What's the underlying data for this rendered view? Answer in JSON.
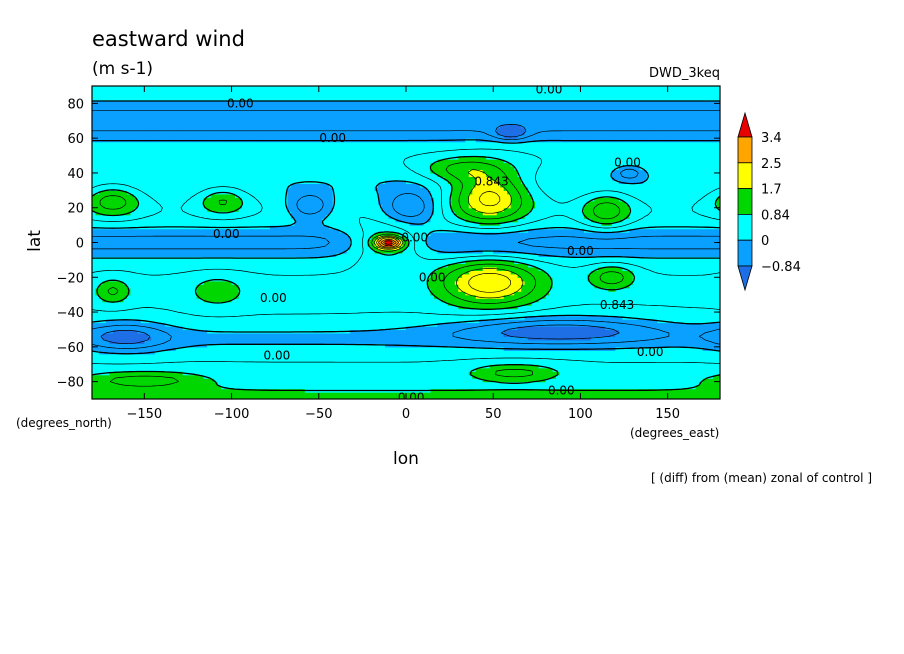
{
  "chart_data": {
    "type": "contour",
    "title": "eastward wind",
    "units": "(m s-1)",
    "dataset": "DWD_3keq",
    "note": "[ (diff) from (mean) zonal of control ]",
    "xlabel": "lon",
    "ylabel": "lat",
    "x_unit": "(degrees_east)",
    "y_unit": "(degrees_north)",
    "xlim": [
      -180,
      180
    ],
    "ylim": [
      -90,
      90
    ],
    "x_ticks": [
      -150,
      -100,
      -50,
      0,
      50,
      100,
      150
    ],
    "y_ticks": [
      -80,
      -60,
      -40,
      -20,
      0,
      20,
      40,
      60,
      80
    ],
    "x_tick_labels": [
      "−150",
      "−100",
      "−50",
      "0",
      "50",
      "100",
      "150"
    ],
    "y_tick_labels": [
      "−80",
      "−60",
      "−40",
      "−20",
      "0",
      "20",
      "40",
      "60",
      "80"
    ],
    "levels": [
      -0.84,
      0,
      0.84,
      1.7,
      2.5,
      3.4
    ],
    "colorbar_labels": [
      "3.4",
      "2.5",
      "1.7",
      "0.84",
      "0",
      "−0.84"
    ],
    "colors": {
      "below": "#1e6ee6",
      "band1": "#0aa0ff",
      "band2": "#00ffff",
      "band3": "#00d700",
      "band4": "#ffff00",
      "band5": "#ffa500",
      "above": "#e60000"
    },
    "contour_labels": [
      {
        "text": "0.00",
        "lon": -95,
        "lat": 80
      },
      {
        "text": "0.00",
        "lon": -42,
        "lat": 60
      },
      {
        "text": "0.00",
        "lon": 82,
        "lat": 88
      },
      {
        "text": "0.00",
        "lon": 127,
        "lat": 46
      },
      {
        "text": "0.843",
        "lon": 49,
        "lat": 35
      },
      {
        "text": "0.00",
        "lon": -103,
        "lat": 5
      },
      {
        "text": "0.00",
        "lon": 5,
        "lat": 3
      },
      {
        "text": "0.00",
        "lon": 15,
        "lat": -20
      },
      {
        "text": "0.00",
        "lon": 100,
        "lat": -5
      },
      {
        "text": "0.00",
        "lon": -76,
        "lat": -32
      },
      {
        "text": "0.843",
        "lon": 121,
        "lat": -36
      },
      {
        "text": "0.00",
        "lon": -74,
        "lat": -65
      },
      {
        "text": "0.00",
        "lon": 140,
        "lat": -63
      },
      {
        "text": "0.00",
        "lon": 89,
        "lat": -85
      },
      {
        "text": "0.00",
        "lon": 3,
        "lat": -89
      }
    ],
    "features": [
      {
        "kind": "blob",
        "lon": -168,
        "lat": 24,
        "w": 16,
        "h": 9,
        "value": 1.2
      },
      {
        "kind": "blob",
        "lon": -105,
        "lat": 24,
        "w": 14,
        "h": 8,
        "value": 1.0
      },
      {
        "kind": "blob",
        "lon": -55,
        "lat": 21,
        "w": 13,
        "h": 8,
        "value": -1.1
      },
      {
        "kind": "blob",
        "lon": 2,
        "lat": 20,
        "w": 16,
        "h": 10,
        "value": -1.2
      },
      {
        "kind": "blob",
        "lon": 48,
        "lat": 27,
        "w": 22,
        "h": 16,
        "value": 2.0
      },
      {
        "kind": "blob",
        "lon": 30,
        "lat": 42,
        "w": 22,
        "h": 7,
        "value": 0.9
      },
      {
        "kind": "blob",
        "lon": 115,
        "lat": 18,
        "w": 14,
        "h": 10,
        "value": 1.2
      },
      {
        "kind": "blob",
        "lon": -10,
        "lat": 0,
        "w": 22,
        "h": 11,
        "value": 1.4
      },
      {
        "kind": "blob",
        "lon": -10,
        "lat": 0,
        "w": 8,
        "h": 3.5,
        "value": 3.0
      },
      {
        "kind": "blob",
        "lon": 48,
        "lat": -23,
        "w": 28,
        "h": 13,
        "value": 2.0
      },
      {
        "kind": "blob",
        "lon": 118,
        "lat": -20,
        "w": 13,
        "h": 7,
        "value": 1.1
      },
      {
        "kind": "blob",
        "lon": -108,
        "lat": -28,
        "w": 15,
        "h": 8,
        "value": 0.8
      },
      {
        "kind": "blob",
        "lon": -168,
        "lat": -28,
        "w": 10,
        "h": 7,
        "value": 0.9
      },
      {
        "kind": "blob",
        "lon": 88,
        "lat": -50,
        "w": 60,
        "h": 8,
        "value": -1.2
      },
      {
        "kind": "blob",
        "lon": -160,
        "lat": -54,
        "w": 24,
        "h": 9,
        "value": -1.0
      },
      {
        "kind": "blob",
        "lon": 62,
        "lat": -75,
        "w": 26,
        "h": 5,
        "value": 1.0
      },
      {
        "kind": "blob",
        "lon": -150,
        "lat": -79,
        "w": 38,
        "h": 5,
        "value": 1.0
      },
      {
        "kind": "blob",
        "lon": 60,
        "lat": 63,
        "w": 10,
        "h": 4,
        "value": -1.0
      },
      {
        "kind": "blob",
        "lon": 128,
        "lat": 40,
        "w": 8,
        "h": 4,
        "value": -0.9
      },
      {
        "kind": "band",
        "lat": 70,
        "w": 12,
        "value": -1.1
      },
      {
        "kind": "band",
        "lat": -55,
        "w": 8,
        "value": -0.55
      },
      {
        "kind": "band",
        "lat": 0,
        "w": 10,
        "value": -1.0
      },
      {
        "kind": "band",
        "lat": 34,
        "w": 10,
        "value": -0.4
      },
      {
        "kind": "band",
        "lat": -88,
        "w": 6,
        "value": 0.5
      }
    ],
    "baseline": 0.45
  }
}
